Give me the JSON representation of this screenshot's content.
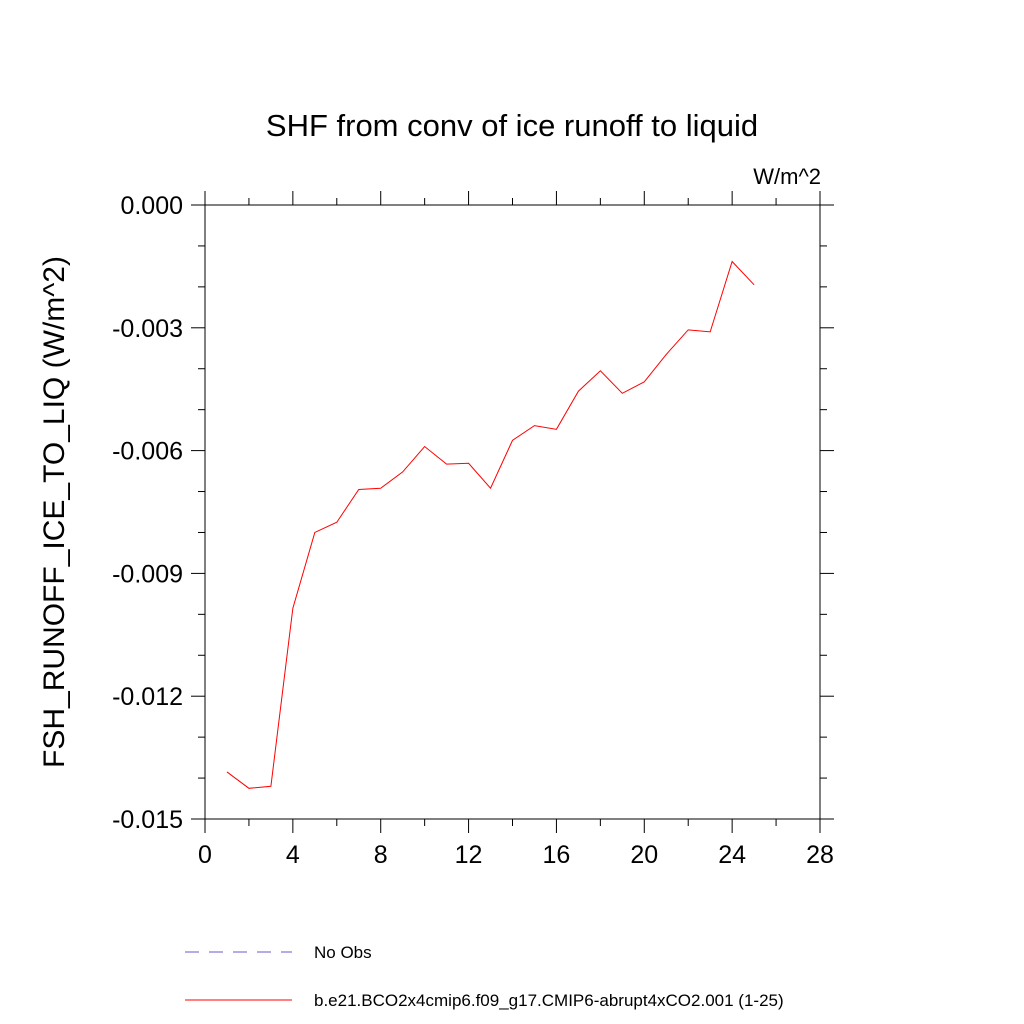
{
  "chart_data": {
    "type": "line",
    "title": "SHF from conv of ice runoff to liquid",
    "units_label": "W/m^2",
    "ylabel": "FSH_RUNOFF_ICE_TO_LIQ  (W/m^2)",
    "xlabel": "",
    "xlim": [
      0,
      28
    ],
    "ylim": [
      -0.015,
      0.0
    ],
    "xticks": [
      0,
      4,
      8,
      12,
      16,
      20,
      24,
      28
    ],
    "xtick_labels": [
      "0",
      "4",
      "8",
      "12",
      "16",
      "20",
      "24",
      "28"
    ],
    "yticks": [
      0.0,
      -0.003,
      -0.006,
      -0.009,
      -0.012,
      -0.015
    ],
    "ytick_labels": [
      "0.000",
      "-0.003",
      "-0.006",
      "-0.009",
      "-0.012",
      "-0.015"
    ],
    "grid": false,
    "legend_position": "bottom",
    "series": [
      {
        "name": "No Obs",
        "color": "#6a5acd",
        "style": "dashed",
        "x": [],
        "y": []
      },
      {
        "name": "b.e21.BCO2x4cmip6.f09_g17.CMIP6-abrupt4xCO2.001 (1-25)",
        "color": "#ff0000",
        "style": "solid",
        "x": [
          1,
          2,
          3,
          4,
          5,
          6,
          7,
          8,
          9,
          10,
          11,
          12,
          13,
          14,
          15,
          16,
          17,
          18,
          19,
          20,
          21,
          22,
          23,
          24,
          25
        ],
        "y": [
          -0.01385,
          -0.01425,
          -0.0142,
          -0.00985,
          -0.008,
          -0.00775,
          -0.00695,
          -0.00692,
          -0.00652,
          -0.0059,
          -0.00633,
          -0.00631,
          -0.00692,
          -0.00575,
          -0.00539,
          -0.00548,
          -0.00455,
          -0.00405,
          -0.0046,
          -0.00432,
          -0.00365,
          -0.00305,
          -0.0031,
          -0.00138,
          -0.00195
        ]
      }
    ]
  }
}
